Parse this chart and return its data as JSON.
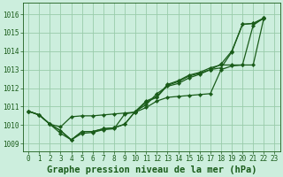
{
  "background_color": "#cceedd",
  "plot_bg_color": "#cceedd",
  "grid_color": "#99ccaa",
  "line_color": "#1a5c1a",
  "xlabel": "Graphe pression niveau de la mer (hPa)",
  "xlim": [
    -0.5,
    23.5
  ],
  "ylim": [
    1008.6,
    1016.6
  ],
  "yticks": [
    1009,
    1010,
    1011,
    1012,
    1013,
    1014,
    1015,
    1016
  ],
  "xticks": [
    0,
    1,
    2,
    3,
    4,
    5,
    6,
    7,
    8,
    9,
    10,
    11,
    12,
    13,
    14,
    15,
    16,
    17,
    18,
    19,
    20,
    21,
    22,
    23
  ],
  "series": [
    [
      1010.75,
      1010.55,
      1010.05,
      1009.7,
      1009.2,
      1009.65,
      1009.65,
      1009.8,
      1009.85,
      1010.05,
      1010.75,
      1011.1,
      1011.7,
      1012.1,
      1012.25,
      1012.55,
      1012.75,
      1013.0,
      1013.3,
      1014.0,
      1015.45,
      1015.5,
      1015.75
    ],
    [
      1010.75,
      1010.55,
      1010.05,
      1009.7,
      1009.2,
      1009.65,
      1009.65,
      1009.8,
      1009.85,
      1010.05,
      1010.75,
      1011.3,
      1011.55,
      1012.2,
      1012.4,
      1012.7,
      1012.85,
      1013.1,
      1013.25,
      1013.25,
      1013.25,
      1015.4,
      1015.8
    ],
    [
      1010.75,
      1010.55,
      1010.05,
      1009.55,
      1009.2,
      1009.55,
      1009.6,
      1009.75,
      1009.8,
      1010.6,
      1010.7,
      1011.25,
      1011.5,
      1012.15,
      1012.35,
      1012.65,
      1012.8,
      1013.0,
      1013.1,
      1013.95,
      1015.45,
      1015.5,
      1015.8
    ],
    [
      1010.75,
      1010.55,
      1010.05,
      1009.9,
      1010.45,
      1010.5,
      1010.5,
      1010.55,
      1010.6,
      1010.65,
      1010.7,
      1010.95,
      1011.3,
      1011.5,
      1011.55,
      1011.6,
      1011.65,
      1011.7,
      1013.0,
      1013.2,
      1013.25,
      1013.25,
      1015.8
    ]
  ],
  "marker": "D",
  "marker_size": 2.2,
  "line_width": 0.9,
  "xlabel_fontsize": 7.5,
  "tick_fontsize": 5.5
}
